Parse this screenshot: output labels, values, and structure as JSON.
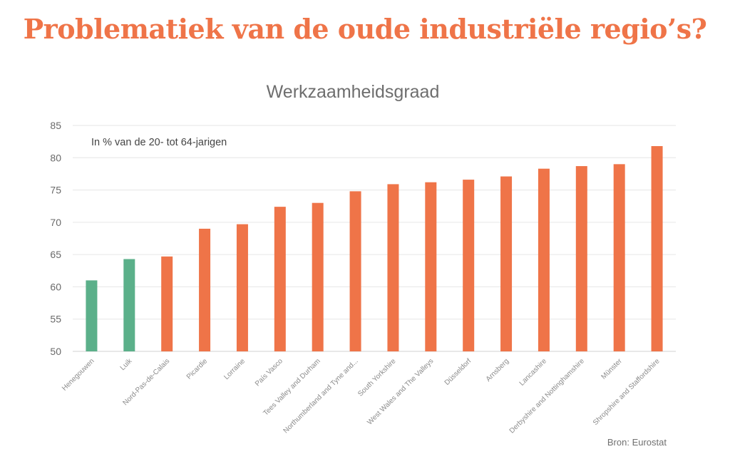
{
  "headline": "Problematiek van de oude industriële regio’s?",
  "chart_data": {
    "type": "bar",
    "title": "Werkzaamheidsgraad",
    "subtitle": "In % van de 20- tot 64-jarigen",
    "source": "Bron: Eurostat",
    "xlabel": "",
    "ylabel": "",
    "ylim": [
      50,
      85
    ],
    "yticks": [
      50,
      55,
      60,
      65,
      70,
      75,
      80,
      85
    ],
    "grid": true,
    "categories": [
      "Henegouwen",
      "Luik",
      "Nord-Pas-de-Calais",
      "Picardie",
      "Lorraine",
      "País Vasco",
      "Tees Valley and Durham",
      "Northumberland and Tyne and...",
      "South Yorkshire",
      "West Wales and The Valleys",
      "Düsseldorf",
      "Arnsberg",
      "Lancashire",
      "Derbyshire and Nottinghamshire",
      "Münster",
      "Shropshire and Staffordshire"
    ],
    "values": [
      61.0,
      64.3,
      64.7,
      69.0,
      69.7,
      72.4,
      73.0,
      74.8,
      75.9,
      76.2,
      76.6,
      77.1,
      78.3,
      78.7,
      79.0,
      81.8
    ],
    "colors": {
      "highlight": "#5bb08a",
      "default": "#ef7448"
    },
    "highlight_categories": [
      "Henegouwen",
      "Luik"
    ]
  }
}
